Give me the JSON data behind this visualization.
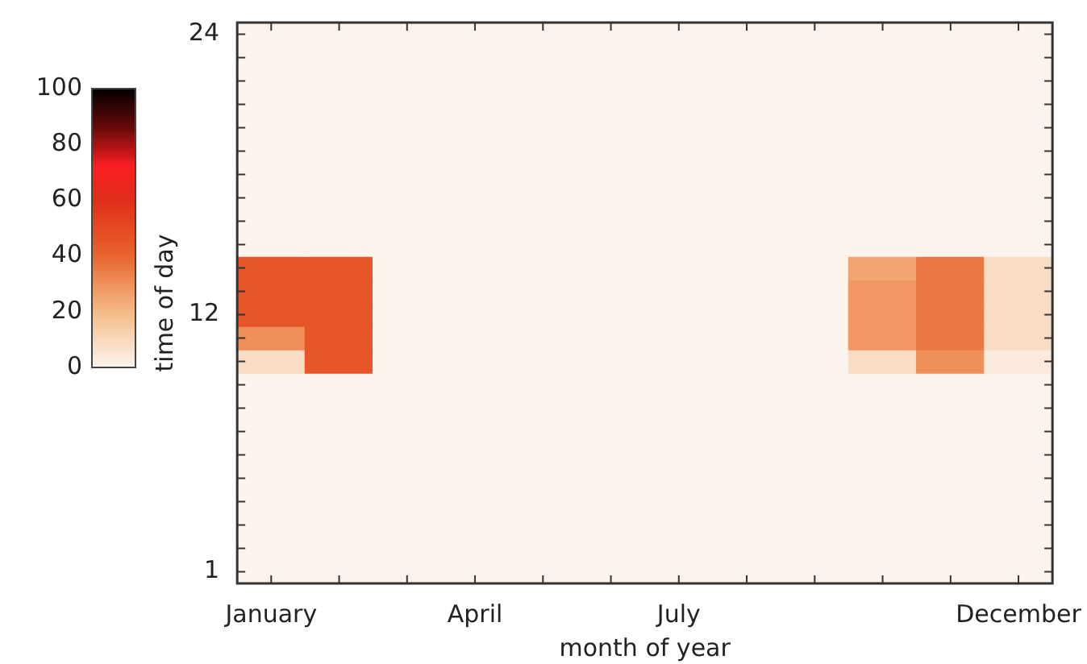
{
  "chart_data": {
    "type": "heatmap",
    "xlabel": "month of year",
    "ylabel": "time of day",
    "categories": [
      "January",
      null,
      null,
      "April",
      null,
      null,
      "July",
      null,
      null,
      null,
      null,
      "December"
    ],
    "y_categories": [
      "24",
      null,
      null,
      null,
      null,
      null,
      null,
      null,
      null,
      null,
      null,
      null,
      "12",
      null,
      null,
      null,
      null,
      null,
      null,
      null,
      null,
      null,
      null,
      "1"
    ],
    "cells": [
      [
        0,
        0,
        0,
        0,
        0,
        0,
        0,
        0,
        0,
        0,
        0,
        0
      ],
      [
        0,
        0,
        0,
        0,
        0,
        0,
        0,
        0,
        0,
        0,
        0,
        0
      ],
      [
        0,
        0,
        0,
        0,
        0,
        0,
        0,
        0,
        0,
        0,
        0,
        0
      ],
      [
        0,
        0,
        0,
        0,
        0,
        0,
        0,
        0,
        0,
        0,
        0,
        0
      ],
      [
        0,
        0,
        0,
        0,
        0,
        0,
        0,
        0,
        0,
        0,
        0,
        0
      ],
      [
        0,
        0,
        0,
        0,
        0,
        0,
        0,
        0,
        0,
        0,
        0,
        0
      ],
      [
        0,
        0,
        0,
        0,
        0,
        0,
        0,
        0,
        0,
        0,
        0,
        0
      ],
      [
        0,
        0,
        0,
        0,
        0,
        0,
        0,
        0,
        0,
        0,
        0,
        0
      ],
      [
        0,
        0,
        0,
        0,
        0,
        0,
        0,
        0,
        0,
        0,
        0,
        0
      ],
      [
        0,
        0,
        0,
        0,
        0,
        0,
        0,
        0,
        0,
        0,
        0,
        0
      ],
      [
        45,
        45,
        0,
        0,
        0,
        0,
        0,
        0,
        0,
        25,
        35,
        8
      ],
      [
        45,
        45,
        0,
        0,
        0,
        0,
        0,
        0,
        0,
        28,
        35,
        8
      ],
      [
        45,
        45,
        0,
        0,
        0,
        0,
        0,
        0,
        0,
        28,
        35,
        8
      ],
      [
        30,
        45,
        0,
        0,
        0,
        0,
        0,
        0,
        0,
        28,
        35,
        8
      ],
      [
        8,
        45,
        0,
        0,
        0,
        0,
        0,
        0,
        0,
        8,
        30,
        3
      ],
      [
        0,
        0,
        0,
        0,
        0,
        0,
        0,
        0,
        0,
        0,
        0,
        0
      ],
      [
        0,
        0,
        0,
        0,
        0,
        0,
        0,
        0,
        0,
        0,
        0,
        0
      ],
      [
        0,
        0,
        0,
        0,
        0,
        0,
        0,
        0,
        0,
        0,
        0,
        0
      ],
      [
        0,
        0,
        0,
        0,
        0,
        0,
        0,
        0,
        0,
        0,
        0,
        0
      ],
      [
        0,
        0,
        0,
        0,
        0,
        0,
        0,
        0,
        0,
        0,
        0,
        0
      ],
      [
        0,
        0,
        0,
        0,
        0,
        0,
        0,
        0,
        0,
        0,
        0,
        0
      ],
      [
        0,
        0,
        0,
        0,
        0,
        0,
        0,
        0,
        0,
        0,
        0,
        0
      ],
      [
        0,
        0,
        0,
        0,
        0,
        0,
        0,
        0,
        0,
        0,
        0,
        0
      ],
      [
        0,
        0,
        0,
        0,
        0,
        0,
        0,
        0,
        0,
        0,
        0,
        0
      ]
    ],
    "clim": [
      0,
      100
    ],
    "cticks": [
      0,
      20,
      40,
      60,
      80,
      100
    ]
  }
}
